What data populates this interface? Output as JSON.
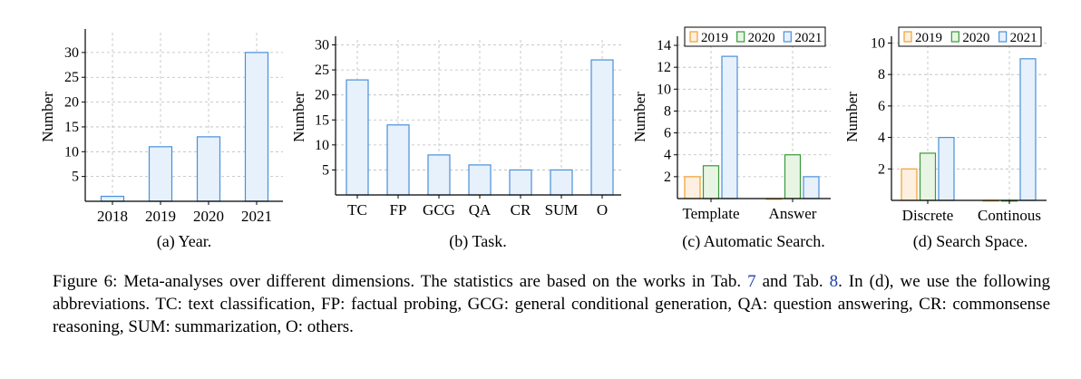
{
  "figure_caption": {
    "prefix": "Figure 6: Meta-analyses over different dimensions. The statistics are based on the works in Tab.",
    "ref1": "7",
    "mid": "and Tab.",
    "ref2": "8",
    "suffix": ". In (d), we use the following abbreviations. TC: text classification, FP: factual probing, GCG: general conditional generation, QA: question answering, CR: commonsense reasoning, SUM: summarization, O: others."
  },
  "colors": {
    "bar_fill": "#e6f1fb",
    "bar_stroke": "#4a90d9",
    "series_2019_stroke": "#f0a030",
    "series_2019_fill": "#fdf0e0",
    "series_2020_stroke": "#3a9a3a",
    "series_2020_fill": "#e8f5e4",
    "series_2021_stroke": "#4a90d9",
    "series_2021_fill": "#e6f1fb",
    "grid": "#bbbbbb"
  },
  "chart_data": [
    {
      "type": "bar",
      "caption": "(a) Year.",
      "ylabel": "Number",
      "categories": [
        "2018",
        "2019",
        "2020",
        "2021"
      ],
      "values": [
        1,
        11,
        13,
        30
      ],
      "ylim": [
        0,
        34
      ],
      "yticks": [
        5,
        10,
        15,
        20,
        25,
        30
      ],
      "grid": true
    },
    {
      "type": "bar",
      "caption": "(b) Task.",
      "ylabel": "Number",
      "categories": [
        "TC",
        "FP",
        "GCG",
        "QA",
        "CR",
        "SUM",
        "O"
      ],
      "values": [
        23,
        14,
        8,
        6,
        5,
        5,
        27
      ],
      "ylim": [
        0,
        31
      ],
      "yticks": [
        5,
        10,
        15,
        20,
        25,
        30
      ],
      "grid": true
    },
    {
      "type": "bar",
      "caption": "(c) Automatic Search.",
      "ylabel": "Number",
      "categories": [
        "Template",
        "Answer"
      ],
      "series": [
        {
          "name": "2019",
          "values": [
            2,
            0
          ]
        },
        {
          "name": "2020",
          "values": [
            3,
            4
          ]
        },
        {
          "name": "2021",
          "values": [
            13,
            2
          ]
        }
      ],
      "ylim": [
        0,
        14.5
      ],
      "yticks": [
        2,
        4,
        6,
        8,
        10,
        12,
        14
      ],
      "legend": "top",
      "grid": true
    },
    {
      "type": "bar",
      "caption": "(d) Search Space.",
      "ylabel": "Number",
      "categories": [
        "Discrete",
        "Continous"
      ],
      "series": [
        {
          "name": "2019",
          "values": [
            2,
            0
          ]
        },
        {
          "name": "2020",
          "values": [
            3,
            0
          ]
        },
        {
          "name": "2021",
          "values": [
            4,
            9
          ]
        }
      ],
      "ylim": [
        0,
        10.2
      ],
      "yticks": [
        2,
        4,
        6,
        8,
        10
      ],
      "legend": "top",
      "grid": true
    }
  ]
}
